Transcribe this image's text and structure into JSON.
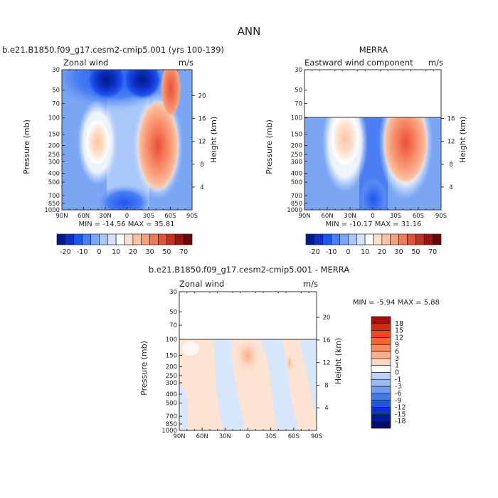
{
  "figure": {
    "title": "ANN"
  },
  "chart_data": [
    {
      "type": "heatmap",
      "panel": "model",
      "title": "b.e21.B1850.f09_g17.cesm2-cmip5.001 (yrs 100-139)",
      "left_label": "Zonal wind",
      "units": "m/s",
      "ylabel": "Pressure (mb)",
      "y2label": "Height (km)",
      "x_ticks": [
        "90N",
        "60N",
        "30N",
        "0",
        "30S",
        "60S",
        "90S"
      ],
      "x_tick_values": [
        90,
        60,
        30,
        0,
        -30,
        -60,
        -90
      ],
      "y_ticks": [
        "30",
        "50",
        "70",
        "100",
        "150",
        "200",
        "250",
        "300",
        "400",
        "500",
        "700",
        "850",
        "1000"
      ],
      "y_tick_values": [
        30,
        50,
        70,
        100,
        150,
        200,
        250,
        300,
        400,
        500,
        700,
        850,
        1000
      ],
      "y2_ticks": [
        "4",
        "8",
        "12",
        "16",
        "20"
      ],
      "y2_tick_values": [
        4,
        8,
        12,
        16,
        20
      ],
      "ylim": [
        1000,
        30
      ],
      "xlim": [
        90,
        -90
      ],
      "y_scale": "log",
      "stats": "MIN = -14.56   MAX =  35.81",
      "features": [
        {
          "lat": 25,
          "p": 200,
          "peak": 20,
          "desc": "northern subtropical jet"
        },
        {
          "lat": -40,
          "p": 200,
          "peak": 35.81,
          "desc": "southern subtropical jet"
        },
        {
          "lat": -55,
          "p": 50,
          "peak": 30,
          "desc": "southern polar night jet"
        },
        {
          "lat": 10,
          "p": 40,
          "peak": -14.56,
          "desc": "tropical stratospheric easterlies"
        }
      ]
    },
    {
      "type": "heatmap",
      "panel": "obs",
      "title": "MERRA",
      "left_label": "Eastward wind component",
      "units": "m/s",
      "ylabel": "Pressure (mb)",
      "y2label": "Height (km)",
      "x_ticks": [
        "90N",
        "60N",
        "30N",
        "0",
        "30S",
        "60S",
        "90S"
      ],
      "x_tick_values": [
        90,
        60,
        30,
        0,
        -30,
        -60,
        -90
      ],
      "y_ticks": [
        "30",
        "50",
        "70",
        "100",
        "150",
        "200",
        "250",
        "300",
        "400",
        "500",
        "700",
        "850",
        "1000"
      ],
      "y_tick_values": [
        30,
        50,
        70,
        100,
        150,
        200,
        250,
        300,
        400,
        500,
        700,
        850,
        1000
      ],
      "y2_ticks": [
        "4",
        "8",
        "12",
        "16"
      ],
      "y2_tick_values": [
        4,
        8,
        12,
        16
      ],
      "ylim": [
        1000,
        30
      ],
      "data_top_p": 100,
      "y_scale": "log",
      "stats": "MIN = -10.17   MAX =  31.16",
      "features": [
        {
          "lat": 30,
          "p": 200,
          "peak": 25,
          "desc": "northern subtropical jet"
        },
        {
          "lat": -40,
          "p": 200,
          "peak": 31.16,
          "desc": "southern subtropical jet"
        },
        {
          "lat": 0,
          "p": 700,
          "peak": -10.17,
          "desc": "tropical easterlies"
        }
      ]
    },
    {
      "type": "heatmap",
      "panel": "diff",
      "title": "b.e21.B1850.f09_g17.cesm2-cmip5.001 - MERRA",
      "left_label": "Zonal wind",
      "units": "m/s",
      "ylabel": "Pressure (mb)",
      "y2label": "Height (km)",
      "x_ticks": [
        "90N",
        "60N",
        "30N",
        "0",
        "30S",
        "60S",
        "90S"
      ],
      "x_tick_values": [
        90,
        60,
        30,
        0,
        -30,
        -60,
        -90
      ],
      "y_ticks": [
        "30",
        "50",
        "70",
        "100",
        "150",
        "200",
        "250",
        "300",
        "400",
        "500",
        "700",
        "850",
        "1000"
      ],
      "y_tick_values": [
        30,
        50,
        70,
        100,
        150,
        200,
        250,
        300,
        400,
        500,
        700,
        850,
        1000
      ],
      "y2_ticks": [
        "4",
        "8",
        "12",
        "16",
        "20"
      ],
      "y2_tick_values": [
        4,
        8,
        12,
        16,
        20
      ],
      "ylim": [
        1000,
        30
      ],
      "data_top_p": 100,
      "y_scale": "log",
      "stats": "MIN =  -5.94   MAX =   5.88"
    }
  ],
  "colorbars": {
    "absolute": {
      "orientation": "horizontal",
      "labels": [
        "-20",
        "-10",
        "0",
        "10",
        "20",
        "30",
        "50",
        "70"
      ],
      "colors": [
        "#001a8a",
        "#0d2fc4",
        "#1e56f0",
        "#4a7ef2",
        "#7aa6f4",
        "#a9c7f8",
        "#d4e3fb",
        "#ffffff",
        "#fde0cc",
        "#fcc3a4",
        "#f9a07d",
        "#f47a58",
        "#e8503a",
        "#c62f22",
        "#99160f",
        "#6b0505"
      ]
    },
    "difference": {
      "orientation": "vertical",
      "labels": [
        "18",
        "15",
        "12",
        "9",
        "6",
        "3",
        "1",
        "0",
        "-1",
        "-3",
        "-6",
        "-9",
        "-12",
        "-15",
        "-18"
      ],
      "colors": [
        "#a80f0a",
        "#d42a14",
        "#ee4a22",
        "#f8652f",
        "#fb8a5a",
        "#fcae88",
        "#fdd6bf",
        "#ffffff",
        "#bdd4f7",
        "#99bbf5",
        "#6f9cf2",
        "#4478ef",
        "#1f56eb",
        "#0a33d0",
        "#001a9c",
        "#000d6b"
      ]
    }
  }
}
